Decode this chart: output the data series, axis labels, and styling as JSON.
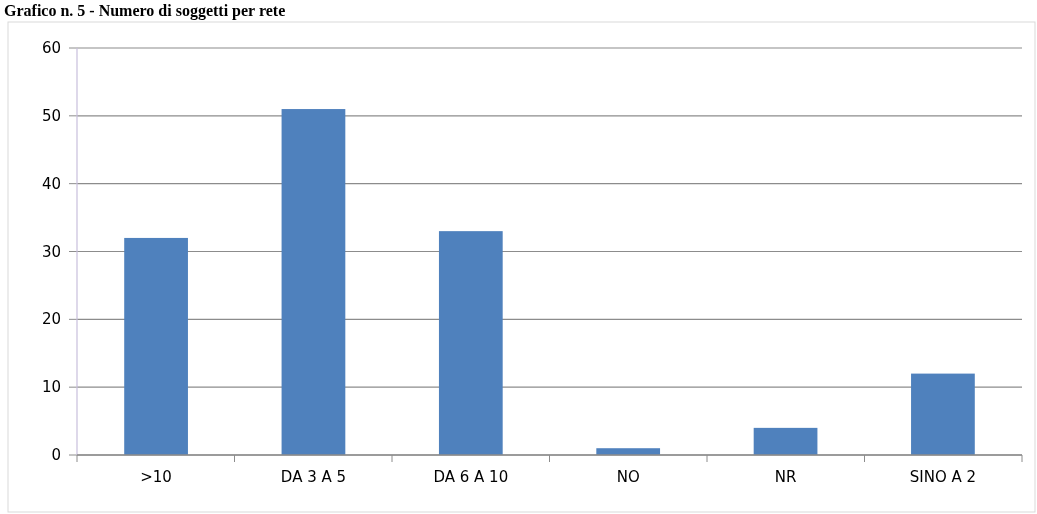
{
  "chart_data": {
    "type": "bar",
    "title": "Grafico n. 5 - Numero di soggetti per rete",
    "categories": [
      ">10",
      "DA 3 A 5",
      "DA 6 A 10",
      "NO",
      "NR",
      "SINO A 2"
    ],
    "values": [
      32,
      51,
      33,
      1,
      4,
      12
    ],
    "color": "#4f81bd",
    "ylim": [
      0,
      60
    ],
    "yticks": [
      0,
      10,
      20,
      30,
      40,
      50,
      60
    ],
    "grid": "y"
  }
}
